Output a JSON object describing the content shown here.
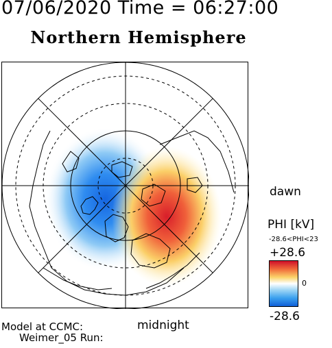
{
  "header": {
    "datetime": "07/06/2020 Time = 06:27:00"
  },
  "title": "Northern Hemisphere",
  "map": {
    "labels": {
      "dawn": "dawn",
      "midnight": "midnight"
    }
  },
  "colorbar": {
    "title": "PHI [kV]",
    "range_text": "-28.6<PHI<23",
    "max_label": "+28.6",
    "zero_label": "0",
    "min_label": "-28.6",
    "colors": [
      "#d0102a",
      "#fbd36a",
      "#ffffff",
      "#3aa0ee",
      "#1060d8"
    ]
  },
  "footer": {
    "line1": "Model at CCMC:",
    "line2": "Weimer_05 Run:"
  }
}
